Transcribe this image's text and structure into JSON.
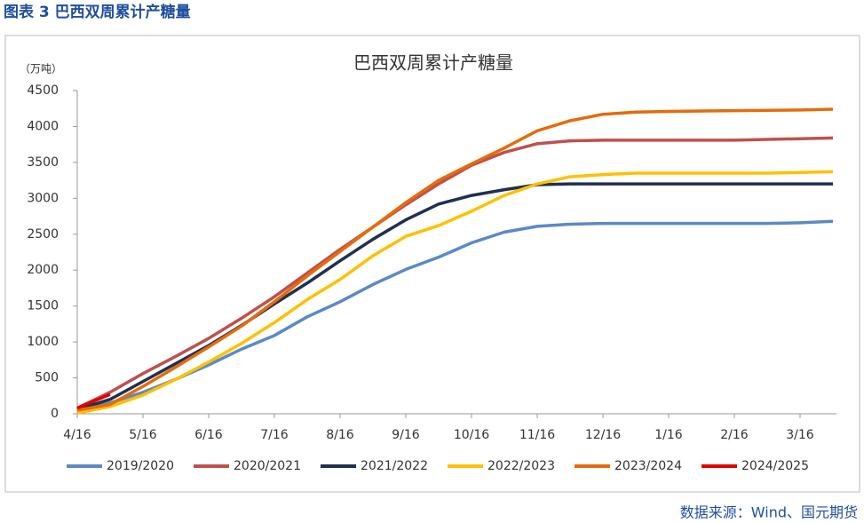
{
  "header": {
    "title": "图表 3 巴西双周累计产糖量"
  },
  "chart_data": {
    "type": "line",
    "title": "巴西双周累计产糖量",
    "y_label": "（万吨）",
    "categories": [
      "4/16",
      null,
      "5/16",
      null,
      "6/16",
      null,
      "7/16",
      null,
      "8/16",
      null,
      "9/16",
      null,
      "10/16",
      null,
      "11/16",
      null,
      "12/16",
      null,
      "1/16",
      null,
      "2/16",
      null,
      "3/16",
      null
    ],
    "ylim": [
      0,
      4500
    ],
    "yticks": [
      0,
      500,
      1000,
      1500,
      2000,
      2500,
      3000,
      3500,
      4000,
      4500
    ],
    "legend": "bottom",
    "series": [
      {
        "name": "2019/2020",
        "color": "#5b8ac6",
        "values": [
          40,
          150,
          300,
          480,
          680,
          900,
          1090,
          1350,
          1560,
          1800,
          2010,
          2180,
          2380,
          2530,
          2610,
          2640,
          2650,
          2650,
          2650,
          2650,
          2650,
          2650,
          2660,
          2680
        ]
      },
      {
        "name": "2020/2021",
        "color": "#c0504d",
        "values": [
          80,
          300,
          560,
          800,
          1050,
          1330,
          1630,
          1960,
          2290,
          2600,
          2910,
          3200,
          3460,
          3640,
          3760,
          3800,
          3810,
          3810,
          3810,
          3810,
          3810,
          3820,
          3830,
          3840
        ]
      },
      {
        "name": "2021/2022",
        "color": "#1f3050",
        "values": [
          60,
          200,
          450,
          700,
          950,
          1230,
          1530,
          1820,
          2130,
          2430,
          2700,
          2920,
          3040,
          3120,
          3190,
          3200,
          3200,
          3200,
          3200,
          3200,
          3200,
          3200,
          3200,
          3200
        ]
      },
      {
        "name": "2022/2023",
        "color": "#ffc000",
        "values": [
          10,
          100,
          260,
          480,
          720,
          980,
          1270,
          1590,
          1870,
          2200,
          2470,
          2620,
          2820,
          3040,
          3200,
          3300,
          3330,
          3350,
          3350,
          3350,
          3350,
          3350,
          3360,
          3370
        ]
      },
      {
        "name": "2023/2024",
        "color": "#e46c0a",
        "values": [
          50,
          130,
          380,
          650,
          930,
          1220,
          1560,
          1920,
          2260,
          2600,
          2940,
          3250,
          3480,
          3700,
          3940,
          4080,
          4170,
          4200,
          4210,
          4215,
          4220,
          4225,
          4230,
          4240
        ]
      },
      {
        "name": "2024/2025",
        "color": "#e00000",
        "values": [
          80,
          270,
          null,
          null,
          null,
          null,
          null,
          null,
          null,
          null,
          null,
          null,
          null,
          null,
          null,
          null,
          null,
          null,
          null,
          null,
          null,
          null,
          null,
          null
        ]
      }
    ]
  },
  "source": "数据来源：Wind、国元期货"
}
